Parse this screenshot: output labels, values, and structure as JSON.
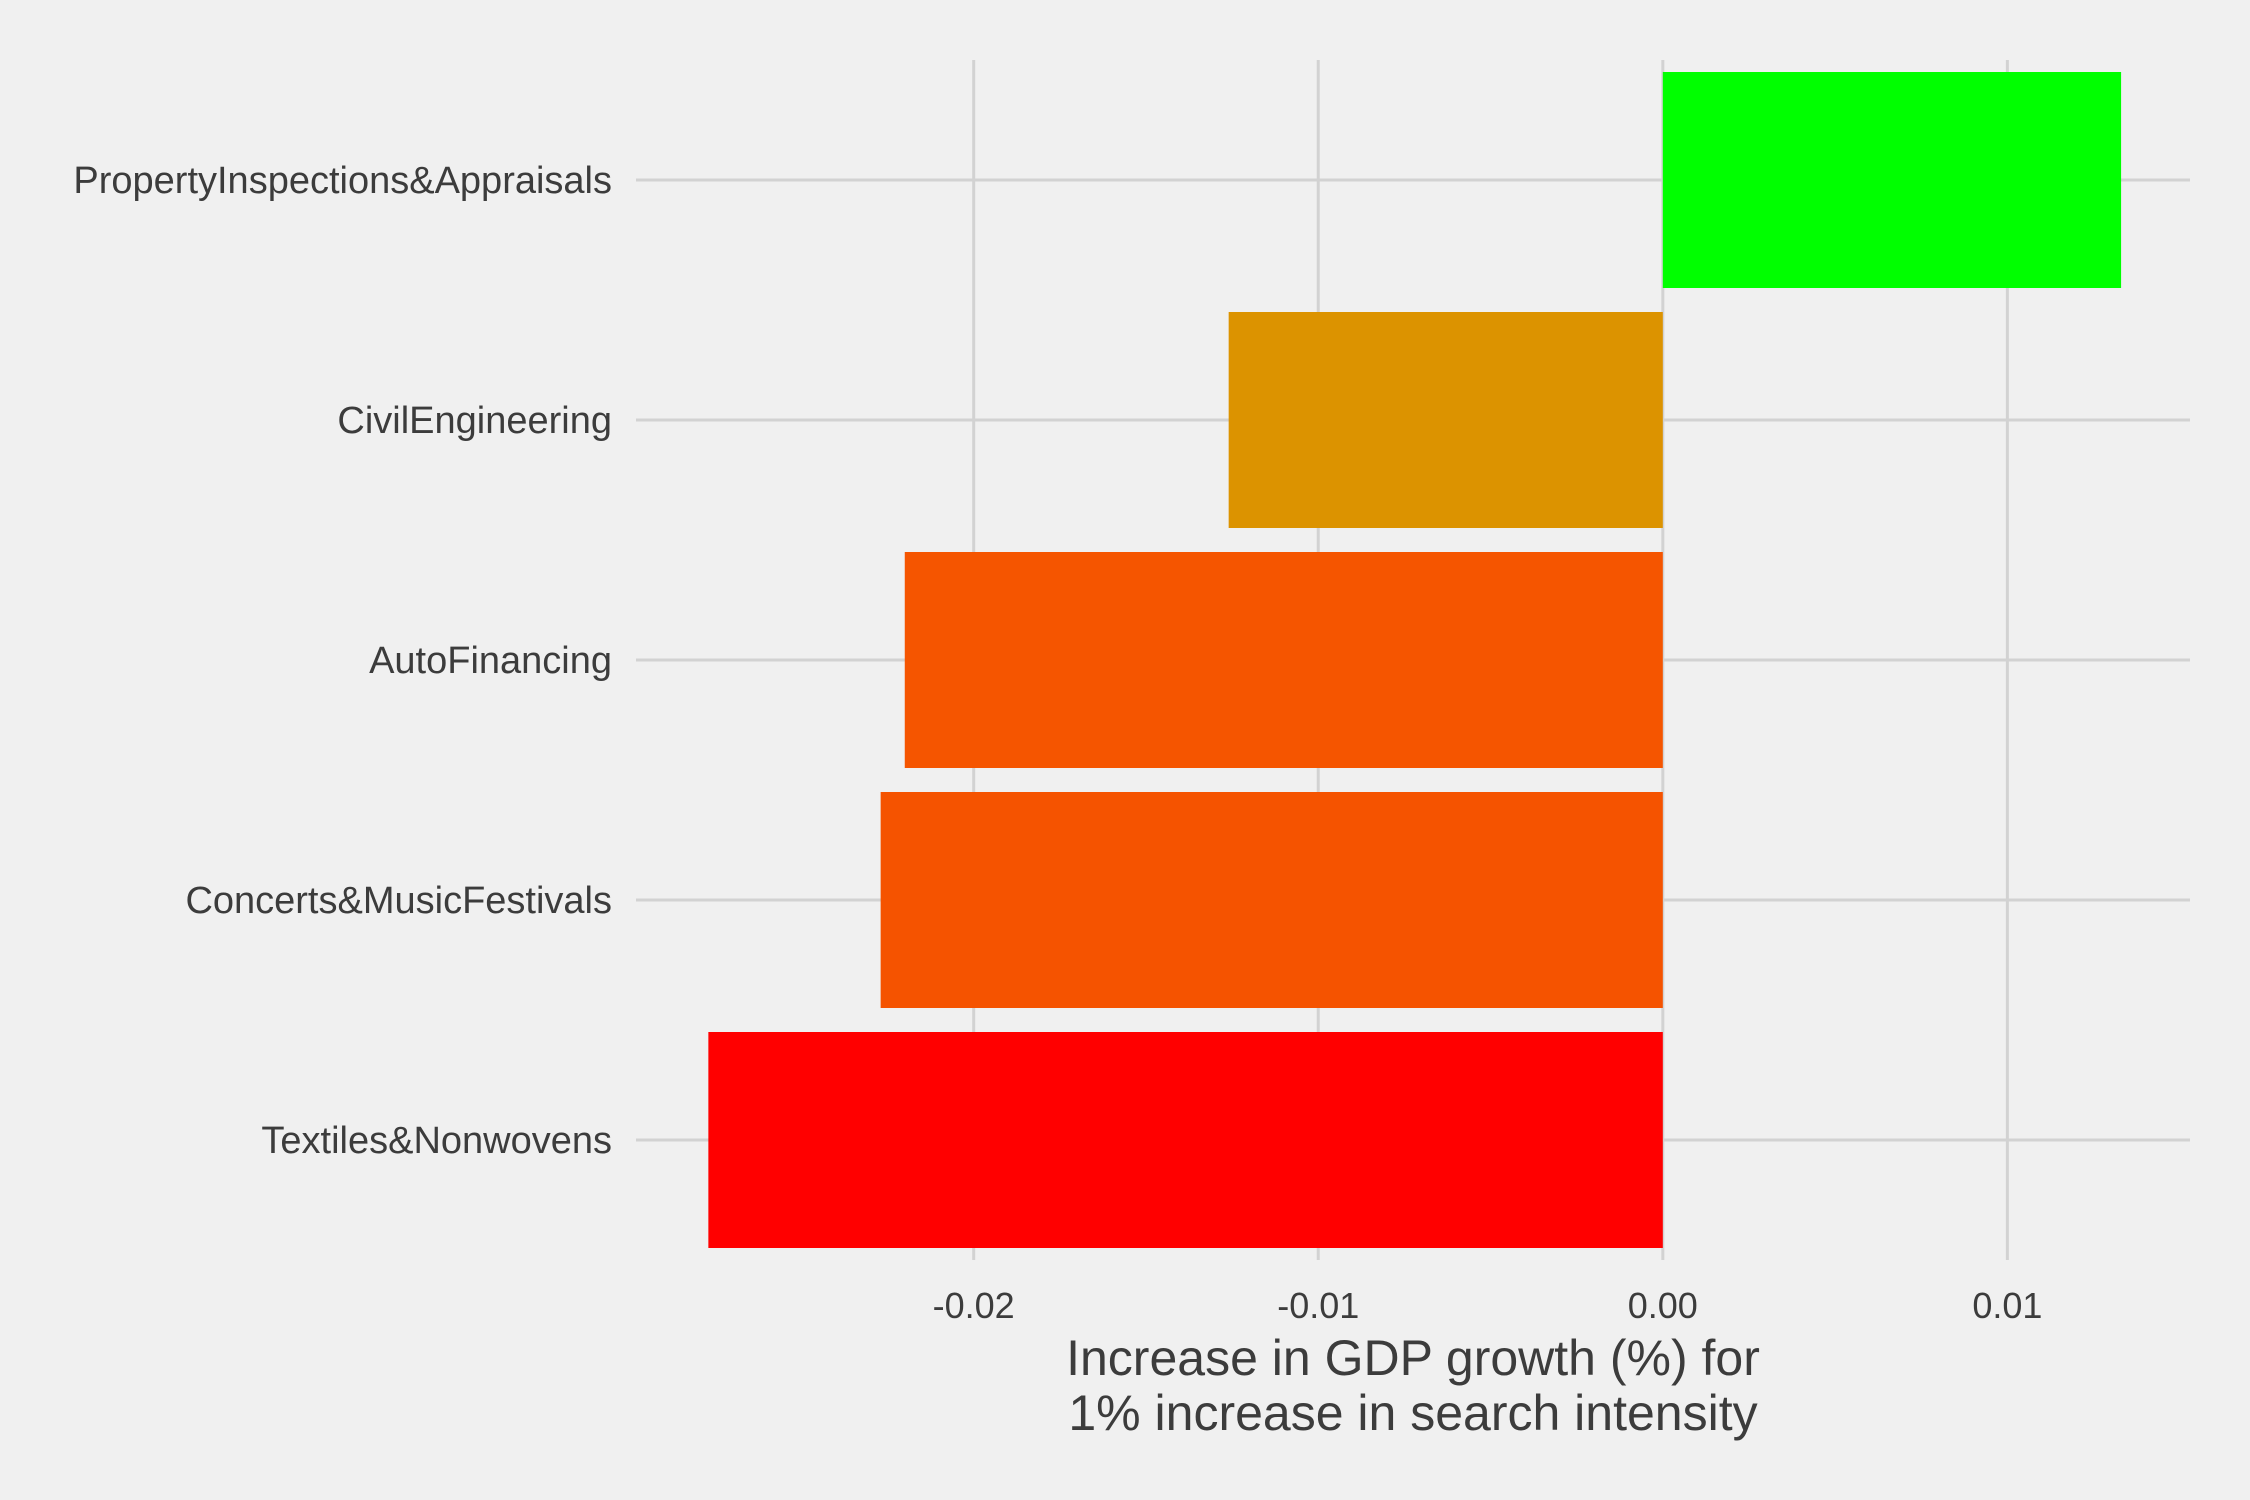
{
  "chart_data": {
    "type": "bar",
    "orientation": "horizontal",
    "categories": [
      "PropertyInspections&Appraisals",
      "CivilEngineering",
      "AutoFinancing",
      "Concerts&MusicFestivals",
      "Textiles&Nonwovens"
    ],
    "values": [
      0.0133,
      -0.0126,
      -0.022,
      -0.0227,
      -0.0277
    ],
    "colors": [
      "#00ff00",
      "#dc9300",
      "#f55500",
      "#f55300",
      "#ff0000"
    ],
    "xlabel_lines": [
      "Increase in GDP growth (%) for",
      "1% increase in search intensity"
    ],
    "ylabel": "",
    "xlim": [
      -0.0298,
      0.0153
    ],
    "xticks": [
      -0.02,
      -0.01,
      0.0,
      0.01
    ],
    "xtick_labels": [
      "-0.02",
      "-0.01",
      "0.00",
      "0.01"
    ],
    "grid": true,
    "legend": "none"
  }
}
